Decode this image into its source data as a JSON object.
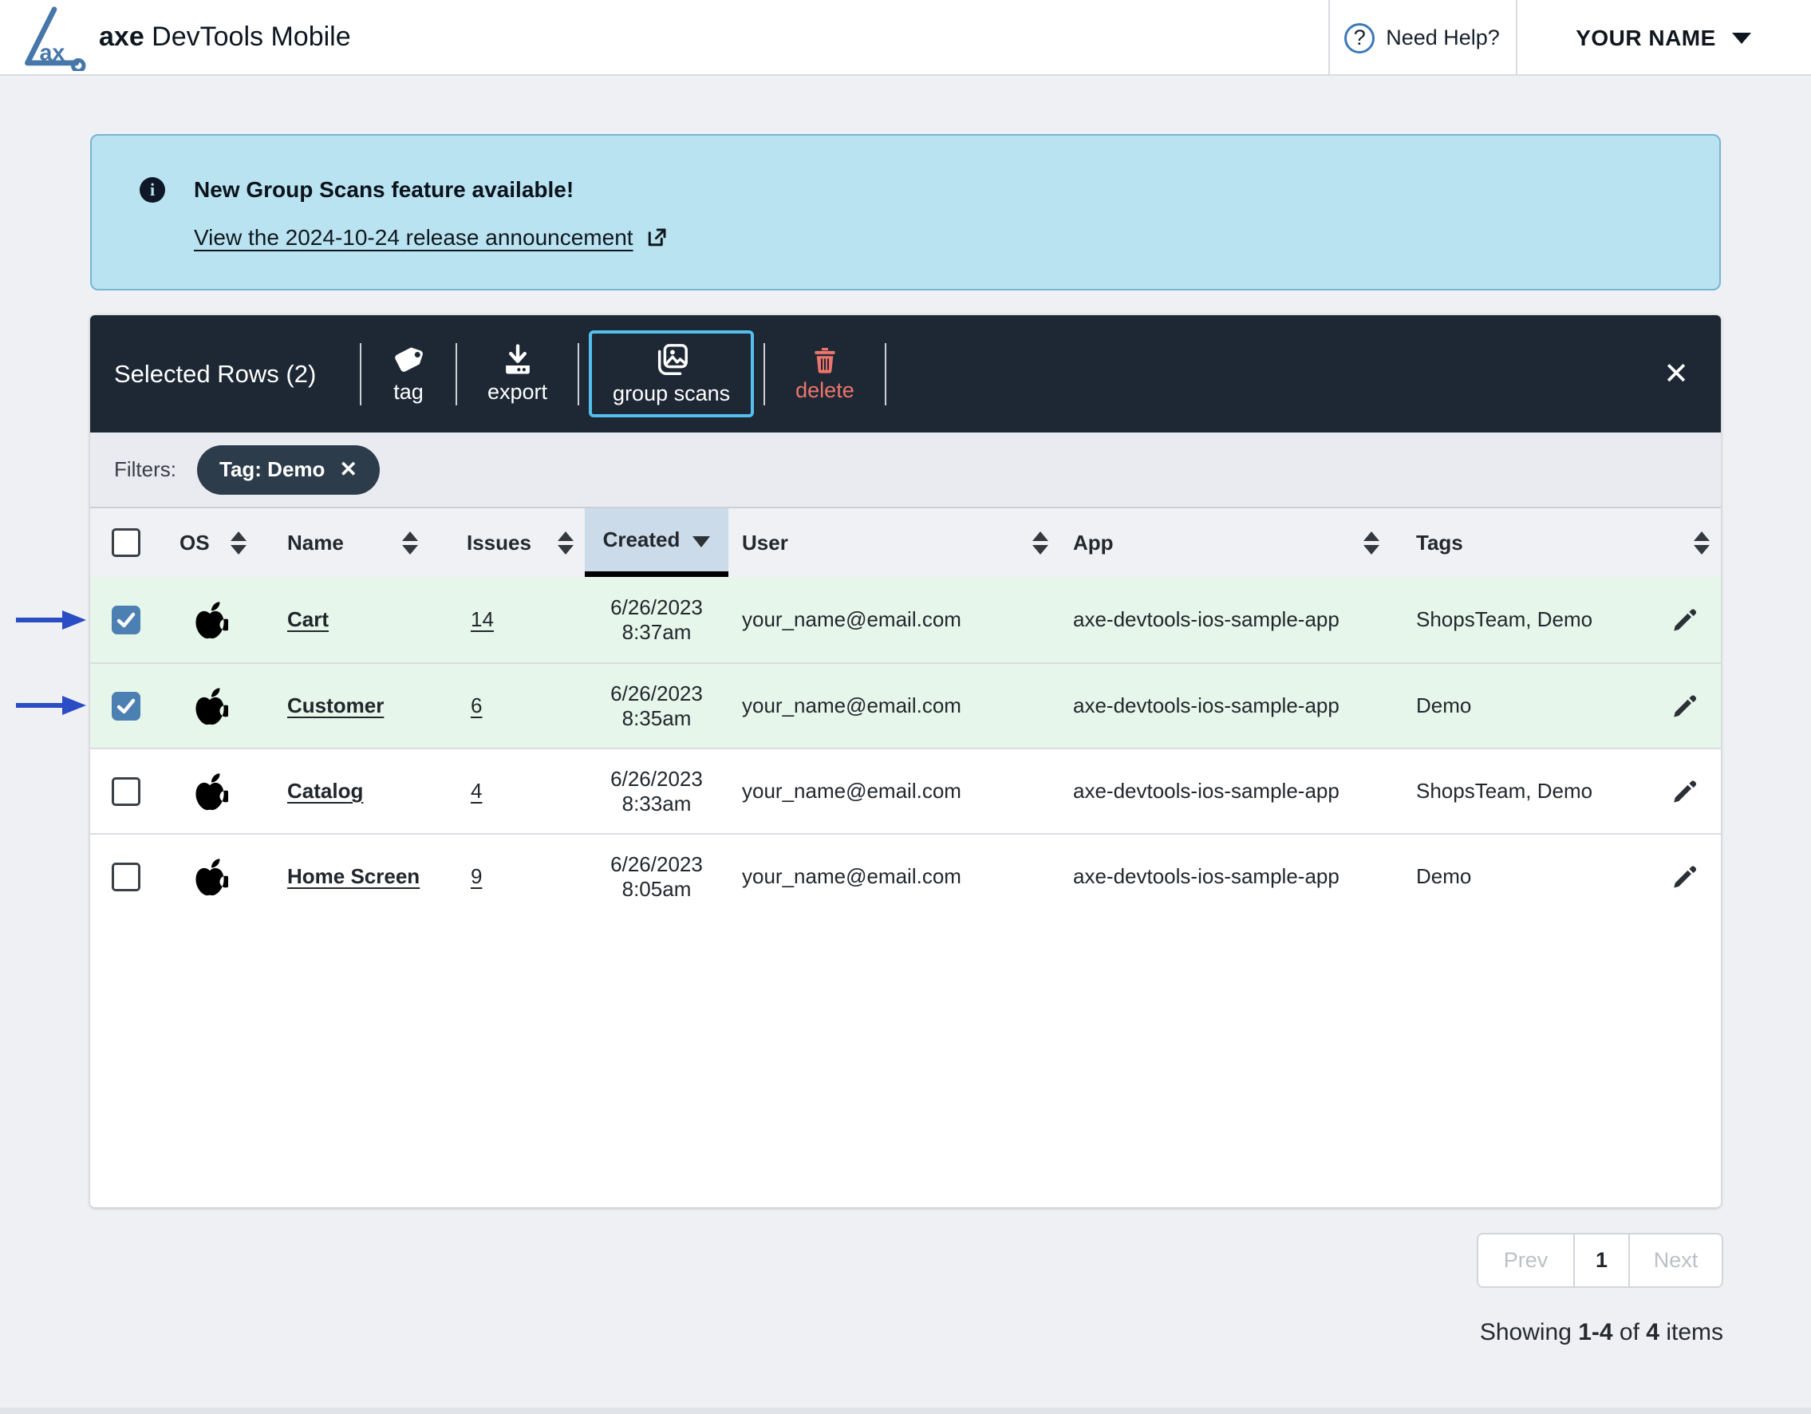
{
  "header": {
    "logo_text": "ax",
    "title_bold": "axe",
    "title_rest": " DevTools Mobile",
    "help_label": "Need Help?",
    "help_glyph": "?",
    "user_label": "YOUR NAME"
  },
  "banner": {
    "info_glyph": "i",
    "title": "New Group Scans feature available!",
    "link_label": "View the 2024-10-24 release announcement"
  },
  "toolbar": {
    "selected_label": "Selected Rows (2)",
    "tag_label": "tag",
    "export_label": "export",
    "group_scans_label": "group scans",
    "delete_label": "delete",
    "close_glyph": "✕"
  },
  "filters": {
    "label": "Filters:",
    "chip_label": "Tag: Demo",
    "chip_close_glyph": "✕"
  },
  "table": {
    "columns": {
      "os": "OS",
      "name": "Name",
      "issues": "Issues",
      "created": "Created",
      "user": "User",
      "app": "App",
      "tags": "Tags"
    },
    "sorted_column": "created",
    "sort_direction": "desc",
    "rows": [
      {
        "selected": true,
        "os": "apple",
        "name": "Cart",
        "issues": "14",
        "created_date": "6/26/2023",
        "created_time": "8:37am",
        "user": "your_name@email.com",
        "app": "axe-devtools-ios-sample-app",
        "tags": "ShopsTeam, Demo"
      },
      {
        "selected": true,
        "os": "apple",
        "name": "Customer",
        "issues": "6",
        "created_date": "6/26/2023",
        "created_time": "8:35am",
        "user": "your_name@email.com",
        "app": "axe-devtools-ios-sample-app",
        "tags": "Demo"
      },
      {
        "selected": false,
        "os": "apple",
        "name": "Catalog",
        "issues": "4",
        "created_date": "6/26/2023",
        "created_time": "8:33am",
        "user": "your_name@email.com",
        "app": "axe-devtools-ios-sample-app",
        "tags": "ShopsTeam, Demo"
      },
      {
        "selected": false,
        "os": "apple",
        "name": "Home Screen",
        "issues": "9",
        "created_date": "6/26/2023",
        "created_time": "8:05am",
        "user": "your_name@email.com",
        "app": "axe-devtools-ios-sample-app",
        "tags": "Demo"
      }
    ]
  },
  "pagination": {
    "prev": "Prev",
    "page": "1",
    "next": "Next"
  },
  "showing": {
    "prefix": "Showing ",
    "range": "1-4",
    "middle": " of ",
    "total": "4",
    "suffix": " items"
  },
  "colors": {
    "banner_bg": "#b9e3f1",
    "toolbar_bg": "#1d2834",
    "focus_outline": "#55bfee",
    "danger": "#ee756d",
    "selected_row_bg": "#e6f6ea",
    "checkbox_checked": "#4c80b3",
    "sorted_header_bg": "#ccdbe9",
    "selection_arrow": "#2a4cc4"
  }
}
